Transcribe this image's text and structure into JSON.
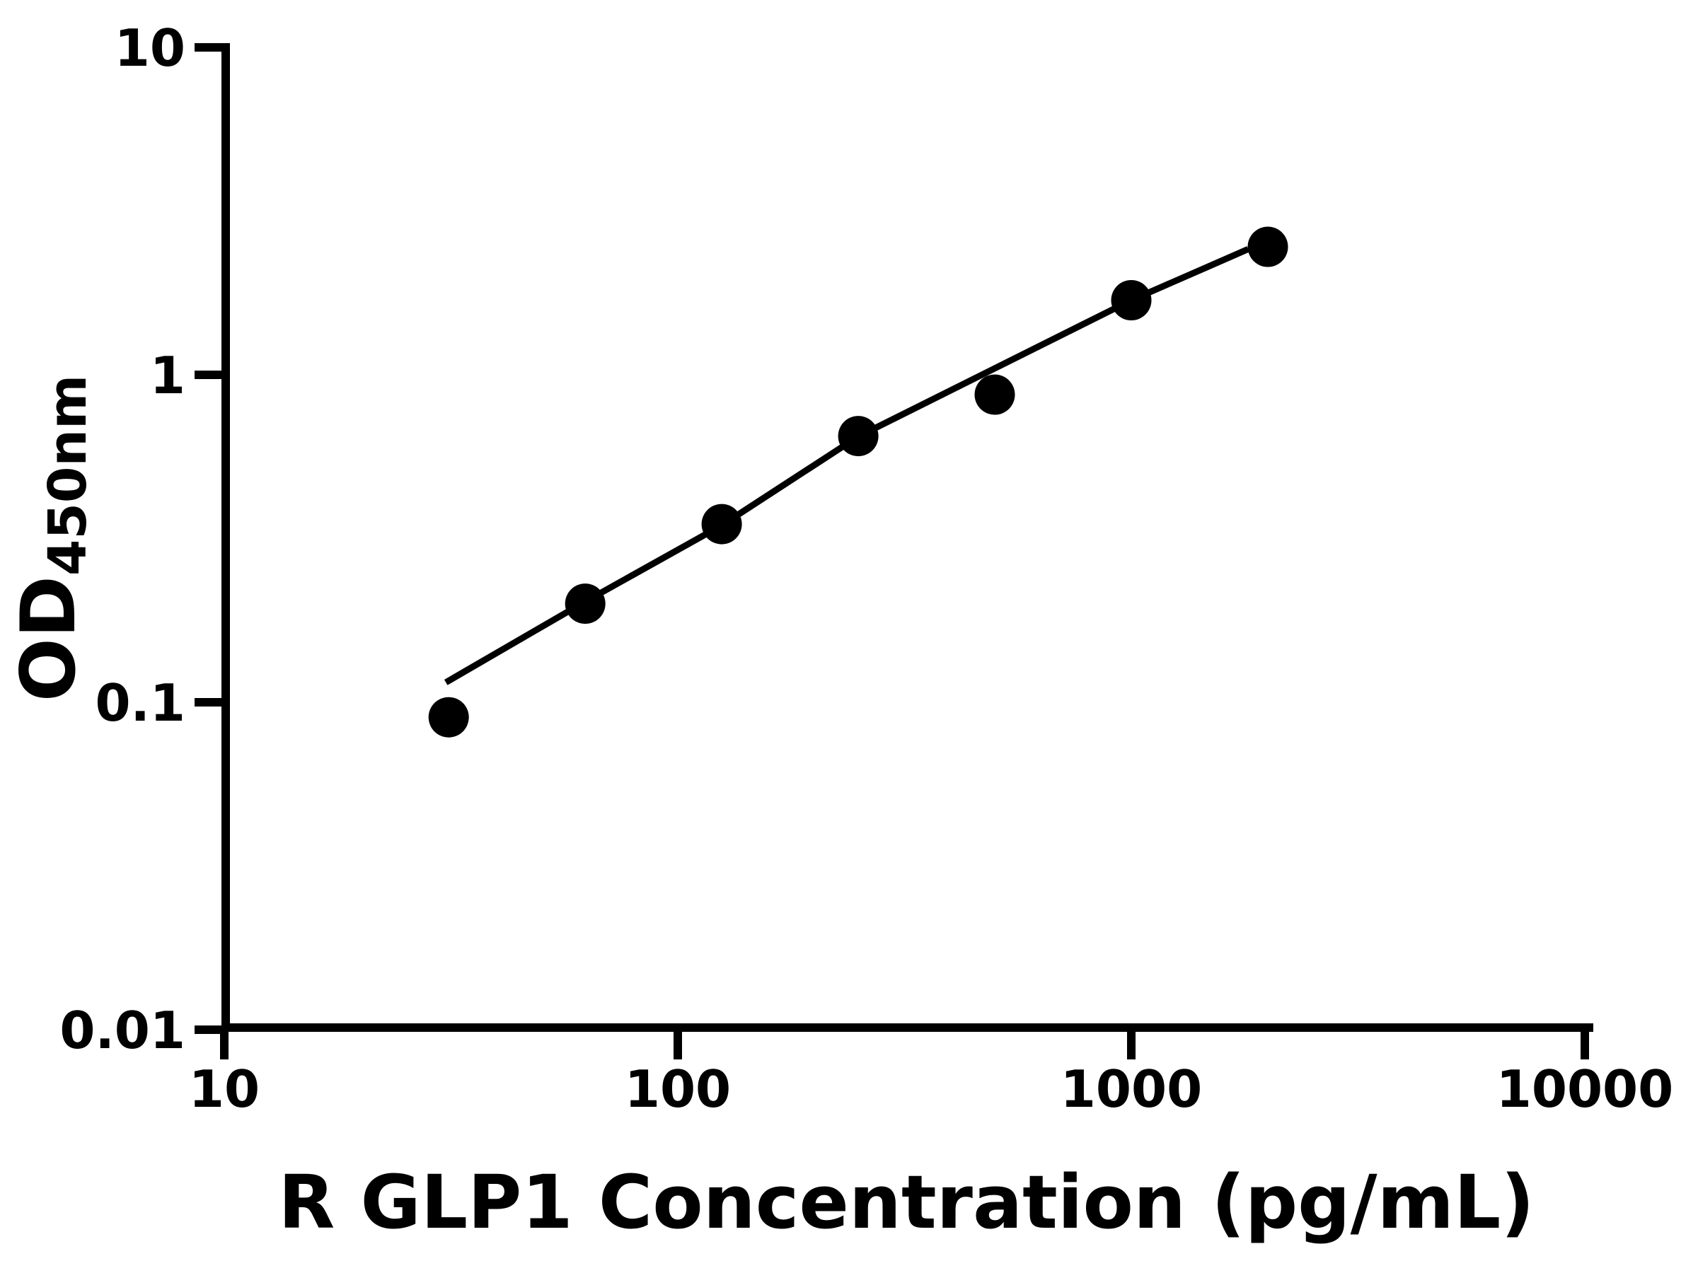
{
  "figure": {
    "background": "#ffffff",
    "ink": "#000000"
  },
  "chart_data": {
    "type": "scatter",
    "subtype": "elisa-standard-curve",
    "title": "",
    "xlabel": "R GLP1 Concentration (pg/mL)",
    "ylabel": "OD450nm",
    "ylabel_parts": {
      "main": "OD",
      "sub": "450nm"
    },
    "x_scale": "log",
    "y_scale": "log",
    "xlim": [
      10,
      10000
    ],
    "ylim": [
      0.01,
      10
    ],
    "grid": false,
    "legend": null,
    "x_ticks": [
      {
        "v": 10,
        "label": "10"
      },
      {
        "v": 100,
        "label": "100"
      },
      {
        "v": 1000,
        "label": "1000"
      },
      {
        "v": 10000,
        "label": "10000"
      }
    ],
    "y_ticks": [
      {
        "v": 10,
        "label": "10"
      },
      {
        "v": 1,
        "label": "1"
      },
      {
        "v": 0.1,
        "label": "0.1"
      },
      {
        "v": 0.01,
        "label": "0.01"
      }
    ],
    "series": [
      {
        "name": "standards",
        "type": "scatter",
        "marker": "circle",
        "color": "#000000",
        "points": [
          {
            "x": 31.25,
            "y": 0.09
          },
          {
            "x": 62.5,
            "y": 0.2
          },
          {
            "x": 125,
            "y": 0.35
          },
          {
            "x": 250,
            "y": 0.65
          },
          {
            "x": 500,
            "y": 0.87
          },
          {
            "x": 1000,
            "y": 1.69
          },
          {
            "x": 2000,
            "y": 2.46
          }
        ]
      },
      {
        "name": "fit-line",
        "type": "line",
        "color": "#000000",
        "points": [
          {
            "x": 30.8,
            "y": 0.115
          },
          {
            "x": 62.5,
            "y": 0.203
          },
          {
            "x": 125,
            "y": 0.347
          },
          {
            "x": 250,
            "y": 0.648
          },
          {
            "x": 1000,
            "y": 1.69
          },
          {
            "x": 1810,
            "y": 2.42
          }
        ]
      }
    ]
  }
}
